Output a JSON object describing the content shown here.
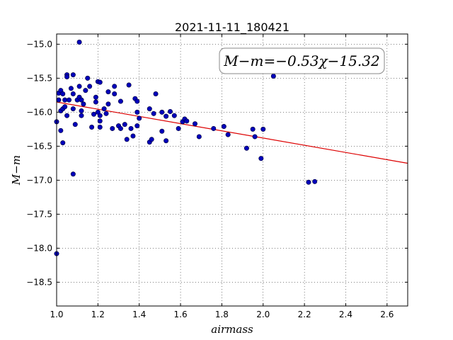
{
  "chart_data": {
    "type": "scatter",
    "title": "2021-11-11_180421",
    "xlabel": "airmass",
    "ylabel": "M−m",
    "xlim": [
      1.0,
      2.7
    ],
    "ylim": [
      -18.85,
      -14.85
    ],
    "y_inverted": true,
    "grid": true,
    "x_ticks": [
      1.0,
      1.2,
      1.4,
      1.6,
      1.8,
      2.0,
      2.2,
      2.4,
      2.6
    ],
    "x_tick_labels": [
      "1.0",
      "1.2",
      "1.4",
      "1.6",
      "1.8",
      "2.0",
      "2.2",
      "2.4",
      "2.6"
    ],
    "y_ticks": [
      -15.0,
      -15.5,
      -16.0,
      -16.5,
      -17.0,
      -17.5,
      -18.0,
      -18.5
    ],
    "y_tick_labels": [
      "−15.0",
      "−15.5",
      "−16.0",
      "−16.5",
      "−17.0",
      "−17.5",
      "−18.0",
      "−18.5"
    ],
    "annotation": "M−m=−0.53χ−15.32",
    "annotation_position": "top-right",
    "fit": {
      "slope": -0.53,
      "intercept": -15.32,
      "color": "#dd0000"
    },
    "marker_color": "#0000bb",
    "points": [
      [
        1.0,
        -16.14
      ],
      [
        1.0,
        -18.08
      ],
      [
        1.01,
        -15.72
      ],
      [
        1.01,
        -15.82
      ],
      [
        1.02,
        -15.68
      ],
      [
        1.02,
        -15.98
      ],
      [
        1.02,
        -16.27
      ],
      [
        1.03,
        -15.73
      ],
      [
        1.03,
        -15.95
      ],
      [
        1.03,
        -16.45
      ],
      [
        1.04,
        -15.82
      ],
      [
        1.04,
        -15.92
      ],
      [
        1.05,
        -15.45
      ],
      [
        1.05,
        -15.48
      ],
      [
        1.05,
        -16.05
      ],
      [
        1.06,
        -15.82
      ],
      [
        1.07,
        -15.65
      ],
      [
        1.08,
        -15.45
      ],
      [
        1.08,
        -15.73
      ],
      [
        1.08,
        -15.95
      ],
      [
        1.09,
        -16.18
      ],
      [
        1.08,
        -16.91
      ],
      [
        1.1,
        -15.82
      ],
      [
        1.11,
        -14.97
      ],
      [
        1.11,
        -15.62
      ],
      [
        1.11,
        -15.78
      ],
      [
        1.12,
        -15.82
      ],
      [
        1.12,
        -15.98
      ],
      [
        1.12,
        -16.05
      ],
      [
        1.13,
        -15.88
      ],
      [
        1.14,
        -15.68
      ],
      [
        1.15,
        -15.5
      ],
      [
        1.16,
        -15.62
      ],
      [
        1.17,
        -16.22
      ],
      [
        1.18,
        -16.03
      ],
      [
        1.19,
        -15.78
      ],
      [
        1.19,
        -15.85
      ],
      [
        1.2,
        -15.55
      ],
      [
        1.21,
        -15.56
      ],
      [
        1.2,
        -16.0
      ],
      [
        1.21,
        -16.05
      ],
      [
        1.21,
        -16.13
      ],
      [
        1.21,
        -16.22
      ],
      [
        1.23,
        -15.95
      ],
      [
        1.24,
        -16.02
      ],
      [
        1.25,
        -15.7
      ],
      [
        1.25,
        -15.88
      ],
      [
        1.27,
        -16.24
      ],
      [
        1.28,
        -15.73
      ],
      [
        1.28,
        -15.62
      ],
      [
        1.3,
        -16.2
      ],
      [
        1.31,
        -16.24
      ],
      [
        1.31,
        -15.84
      ],
      [
        1.33,
        -16.18
      ],
      [
        1.34,
        -16.4
      ],
      [
        1.35,
        -15.6
      ],
      [
        1.36,
        -16.24
      ],
      [
        1.37,
        -16.35
      ],
      [
        1.38,
        -15.8
      ],
      [
        1.39,
        -15.84
      ],
      [
        1.39,
        -16.0
      ],
      [
        1.39,
        -16.2
      ],
      [
        1.4,
        -16.09
      ],
      [
        1.45,
        -16.44
      ],
      [
        1.45,
        -15.95
      ],
      [
        1.46,
        -16.4
      ],
      [
        1.47,
        -16.02
      ],
      [
        1.48,
        -15.73
      ],
      [
        1.51,
        -16.28
      ],
      [
        1.51,
        -16.0
      ],
      [
        1.53,
        -16.42
      ],
      [
        1.53,
        -16.06
      ],
      [
        1.55,
        -15.99
      ],
      [
        1.57,
        -16.05
      ],
      [
        1.59,
        -16.24
      ],
      [
        1.61,
        -16.14
      ],
      [
        1.62,
        -16.1
      ],
      [
        1.63,
        -16.13
      ],
      [
        1.67,
        -16.17
      ],
      [
        1.69,
        -16.36
      ],
      [
        1.76,
        -16.24
      ],
      [
        1.81,
        -16.21
      ],
      [
        1.83,
        -16.33
      ],
      [
        1.92,
        -16.53
      ],
      [
        1.95,
        -16.25
      ],
      [
        1.96,
        -16.36
      ],
      [
        1.99,
        -16.68
      ],
      [
        2.0,
        -16.25
      ],
      [
        2.05,
        -15.47
      ],
      [
        2.22,
        -17.03
      ],
      [
        2.25,
        -17.02
      ]
    ]
  }
}
